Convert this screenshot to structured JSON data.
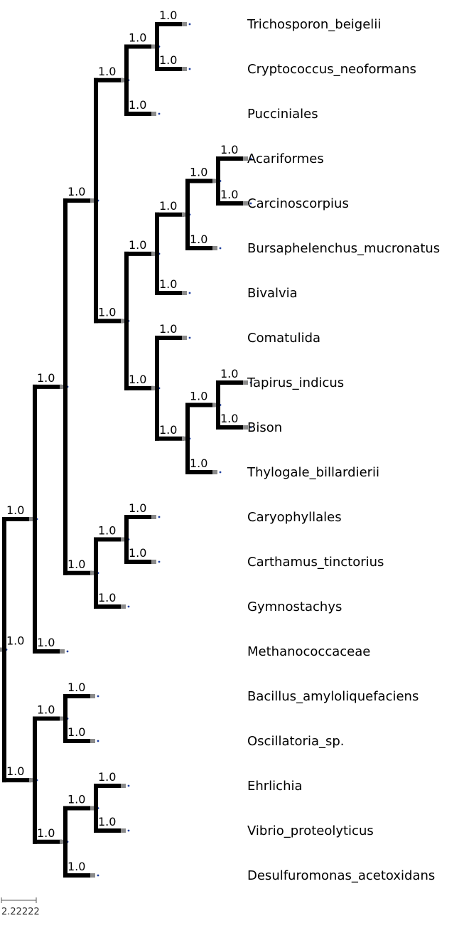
{
  "tree": {
    "newick": "(((((((Trichosporon_beigelii:1.0,Cryptococcus_neoformans:1.0)1.0:1.0,Pucciniales:1.0)1.0:1.0,((((Acariformes:1.0,Carcinoscorpius:1.0)1.0:1.0,Bursaphelenchus_mucronatus:1.0)1.0:1.0,Bivalvia:1.0)1.0:1.0,(Comatulida:1.0,((Tapirus_indicus:1.0,Bison:1.0)1.0:1.0,Thylogale_billardierii:1.0)1.0:1.0)1.0:1.0)1.0:1.0)1.0:1.0,((Caryophyllales:1.0,Carthamus_tinctorius:1.0)1.0:1.0,Gymnostachys:1.0)1.0:1.0)1.0:1.0,Methanococcaceae:1.0)1.0:1.0,((Bacillus_amyloliquefaciens:1.0,Oscillatoria_sp.:1.0)1.0:1.0,((Ehrlichia:1.0,Vibrio_proteolyticus:1.0)1.0:1.0,Desulfuromonas_acetoxidans:1.0)1.0:1.0)1.0:1.0);",
    "leaf_names": [
      "Trichosporon_beigelii",
      "Cryptococcus_neoformans",
      "Pucciniales",
      "Acariformes",
      "Carcinoscorpius",
      "Bursaphelenchus_mucronatus",
      "Bivalvia",
      "Comatulida",
      "Tapirus_indicus",
      "Bison",
      "Thylogale_billardierii",
      "Caryophyllales",
      "Carthamus_tinctorius",
      "Gymnostachys",
      "Methanococcaceae",
      "Bacillus_amyloliquefaciens",
      "Oscillatoria_sp.",
      "Ehrlichia",
      "Vibrio_proteolyticus",
      "Desulfuromonas_acetoxidans"
    ],
    "support_label": "1.0",
    "scale_label": "2.22222",
    "colors": {
      "branch": "#000000",
      "tail": "#8a8a8a",
      "dot": "#1f3f9f"
    }
  }
}
